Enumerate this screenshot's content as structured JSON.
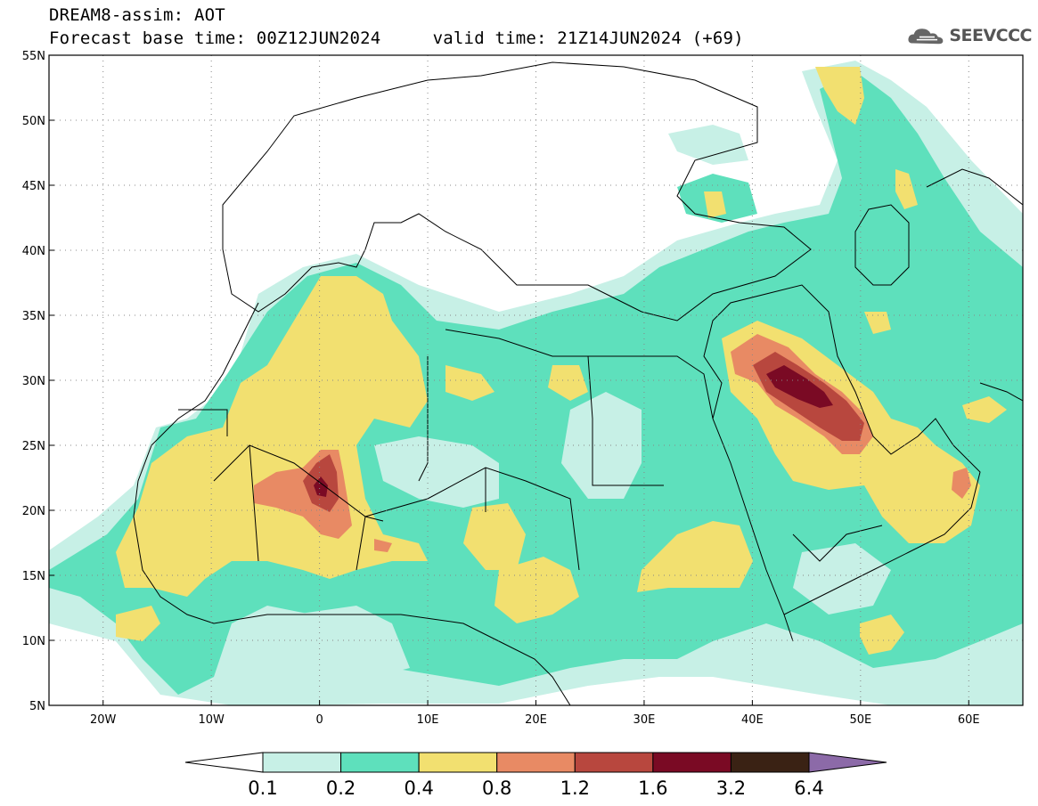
{
  "header": {
    "title_line1": "DREAM8-assim: AOT",
    "title_line2": "Forecast base time: 00Z12JUN2024     valid time: 21Z14JUN2024 (+69)",
    "logo_text": "SEEVCCC",
    "logo_icon": "cloud-logo-icon"
  },
  "map": {
    "lat_ticks": [
      "55N",
      "50N",
      "45N",
      "40N",
      "35N",
      "30N",
      "25N",
      "20N",
      "15N",
      "10N",
      "5N"
    ],
    "lon_ticks": [
      "20W",
      "10W",
      "0",
      "10E",
      "20E",
      "30E",
      "40E",
      "50E",
      "60E"
    ],
    "lat_range": [
      5,
      55
    ],
    "lon_range": [
      -25,
      65
    ],
    "grid": "dotted"
  },
  "colorbar": {
    "labels": [
      "0.1",
      "0.2",
      "0.4",
      "0.8",
      "1.2",
      "1.6",
      "3.2",
      "6.4"
    ],
    "colors": [
      "#ffffff",
      "#c7f0e6",
      "#5ee0bc",
      "#f2e070",
      "#e88a64",
      "#b8473e",
      "#7a0a24",
      "#3a2214",
      "#8c6aa8"
    ]
  },
  "colors": {
    "c01": "#c7f0e6",
    "c02": "#5ee0bc",
    "c04": "#f2e070",
    "c08": "#e88a64",
    "c12": "#b8473e",
    "c16": "#7a0a24",
    "c32": "#3a2214",
    "c64": "#8c6aa8"
  }
}
